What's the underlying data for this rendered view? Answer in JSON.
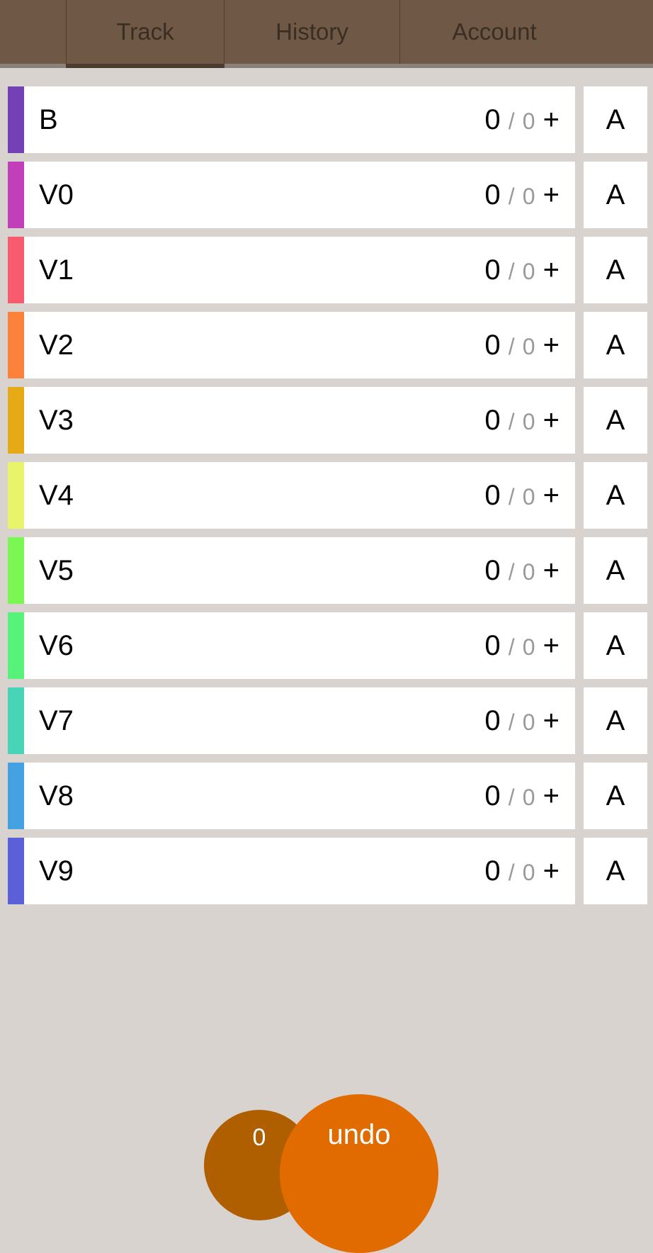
{
  "tabs": [
    "Track",
    "History",
    "Account"
  ],
  "rows": [
    {
      "label": "B",
      "color": "#7440b5",
      "count": "0",
      "sep": "/",
      "total": "0",
      "add": "+",
      "action": "A"
    },
    {
      "label": "V0",
      "color": "#c13fb9",
      "count": "0",
      "sep": "/",
      "total": "0",
      "add": "+",
      "action": "A"
    },
    {
      "label": "V1",
      "color": "#f85a6e",
      "count": "0",
      "sep": "/",
      "total": "0",
      "add": "+",
      "action": "A"
    },
    {
      "label": "V2",
      "color": "#fc813a",
      "count": "0",
      "sep": "/",
      "total": "0",
      "add": "+",
      "action": "A"
    },
    {
      "label": "V3",
      "color": "#e6aa16",
      "count": "0",
      "sep": "/",
      "total": "0",
      "add": "+",
      "action": "A"
    },
    {
      "label": "V4",
      "color": "#e9f46a",
      "count": "0",
      "sep": "/",
      "total": "0",
      "add": "+",
      "action": "A"
    },
    {
      "label": "V5",
      "color": "#7af752",
      "count": "0",
      "sep": "/",
      "total": "0",
      "add": "+",
      "action": "A"
    },
    {
      "label": "V6",
      "color": "#57f27a",
      "count": "0",
      "sep": "/",
      "total": "0",
      "add": "+",
      "action": "A"
    },
    {
      "label": "V7",
      "color": "#48d4b6",
      "count": "0",
      "sep": "/",
      "total": "0",
      "add": "+",
      "action": "A"
    },
    {
      "label": "V8",
      "color": "#45a2e2",
      "count": "0",
      "sep": "/",
      "total": "0",
      "add": "+",
      "action": "A"
    },
    {
      "label": "V9",
      "color": "#5b60d8",
      "count": "0",
      "sep": "/",
      "total": "0",
      "add": "+",
      "action": "A"
    }
  ],
  "session_count": "0",
  "undo": "undo"
}
